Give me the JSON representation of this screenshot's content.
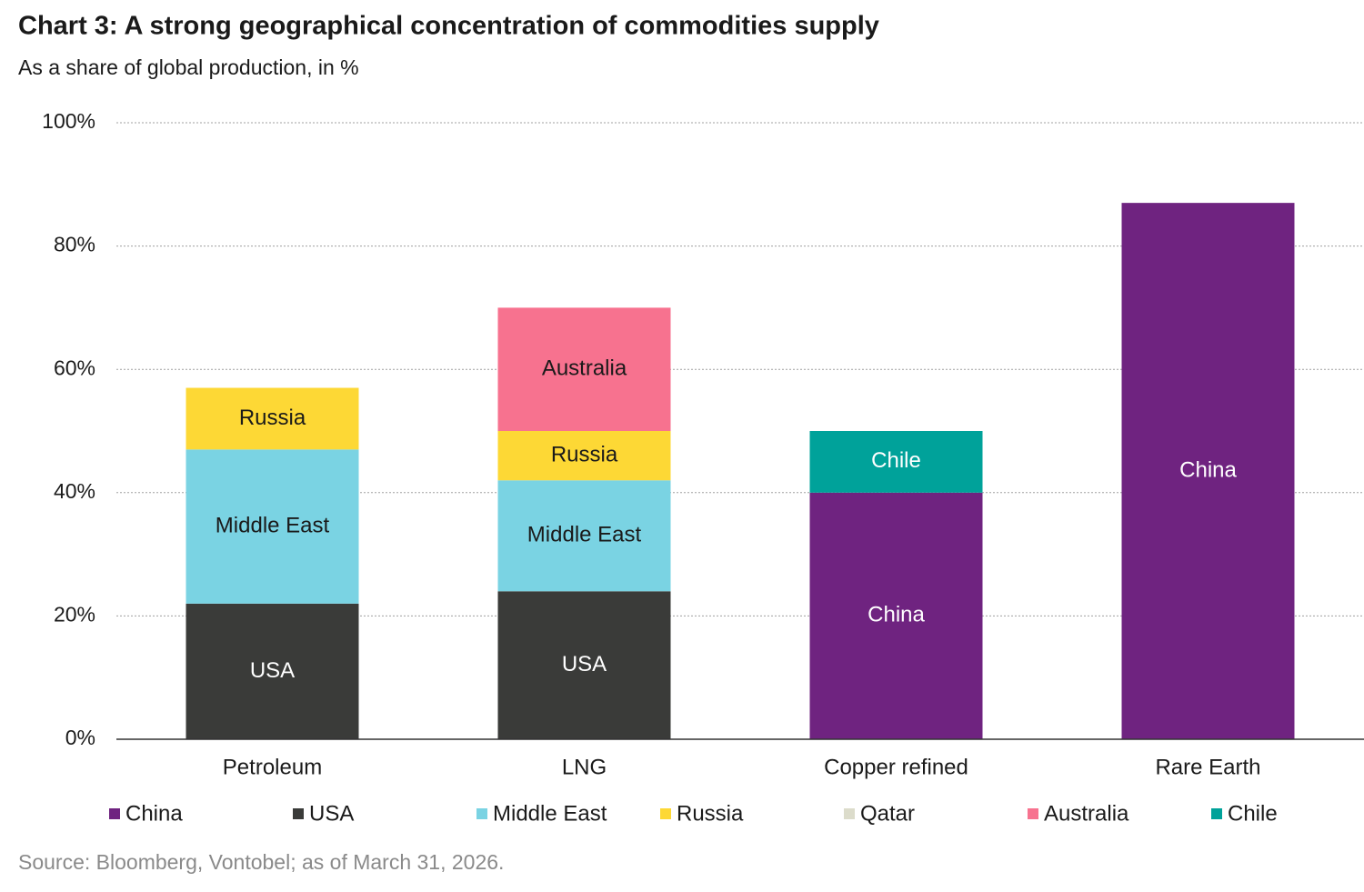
{
  "chart_data": {
    "type": "stacked_bar",
    "title": "Chart 3: A strong geographical concentration of commodities supply",
    "subtitle": "As a share of global production, in %",
    "source": "Source: Bloomberg, Vontobel; as of March 31, 2026.",
    "categories": [
      "Petroleum",
      "LNG",
      "Copper refined",
      "Rare Earth"
    ],
    "series": [
      {
        "name": "China",
        "color": "#6f2380",
        "values": [
          null,
          null,
          40,
          87
        ]
      },
      {
        "name": "USA",
        "color": "#3a3b39",
        "values": [
          22,
          24,
          null,
          null
        ]
      },
      {
        "name": "Middle East",
        "color": "#7ad3e3",
        "values": [
          25,
          18,
          null,
          null
        ]
      },
      {
        "name": "Russia",
        "color": "#fdd835",
        "values": [
          10,
          8,
          null,
          null
        ]
      },
      {
        "name": "Qatar",
        "color": "#dcdccb",
        "values": [
          null,
          null,
          null,
          null
        ]
      },
      {
        "name": "Australia",
        "color": "#f7728f",
        "values": [
          null,
          20,
          null,
          null
        ]
      },
      {
        "name": "Chile",
        "color": "#00a29a",
        "values": [
          null,
          null,
          10,
          null
        ]
      }
    ],
    "ylim": [
      0,
      100
    ],
    "yticks": [
      {
        "value": 0,
        "label": "0%"
      },
      {
        "value": 20,
        "label": "20%"
      },
      {
        "value": 40,
        "label": "40%"
      },
      {
        "value": 60,
        "label": "60%"
      },
      {
        "value": 80,
        "label": "80%"
      },
      {
        "value": 100,
        "label": "100%"
      }
    ],
    "grid": true,
    "legend": "bottom"
  }
}
